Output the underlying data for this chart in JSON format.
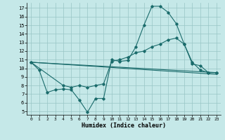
{
  "background_color": "#c5e8e8",
  "line_color": "#1a6b6b",
  "grid_color": "#98c5c5",
  "xlabel": "Humidex (Indice chaleur)",
  "ylim": [
    4.6,
    17.6
  ],
  "xlim": [
    -0.5,
    23.5
  ],
  "yticks": [
    5,
    6,
    7,
    8,
    9,
    10,
    11,
    12,
    13,
    14,
    15,
    16,
    17
  ],
  "xticks": [
    0,
    1,
    2,
    3,
    4,
    5,
    6,
    7,
    8,
    9,
    10,
    11,
    12,
    13,
    14,
    15,
    16,
    17,
    18,
    19,
    20,
    21,
    22,
    23
  ],
  "line1_x": [
    0,
    1,
    2,
    3,
    4,
    5,
    6,
    7,
    8,
    9,
    10,
    11,
    12,
    13,
    14,
    15,
    16,
    17,
    18,
    19,
    20,
    21,
    22,
    23
  ],
  "line1_y": [
    10.7,
    9.8,
    7.2,
    7.5,
    7.6,
    7.5,
    6.3,
    4.9,
    6.5,
    6.5,
    11.0,
    10.8,
    10.9,
    12.5,
    15.0,
    17.2,
    17.2,
    16.5,
    15.2,
    12.8,
    10.7,
    9.8,
    9.5,
    9.5
  ],
  "line2_x": [
    0,
    4,
    5,
    6,
    7,
    8,
    9,
    10,
    11,
    12,
    13,
    14,
    15,
    16,
    17,
    18,
    19,
    20,
    21,
    22,
    23
  ],
  "line2_y": [
    10.7,
    8.0,
    7.8,
    8.0,
    7.8,
    8.0,
    8.2,
    10.8,
    11.0,
    11.3,
    11.8,
    12.0,
    12.5,
    12.8,
    13.3,
    13.5,
    12.8,
    10.5,
    10.3,
    9.5,
    9.5
  ],
  "line3_x": [
    0,
    23
  ],
  "line3_y": [
    10.7,
    9.5
  ],
  "line4_x": [
    0,
    23
  ],
  "line4_y": [
    10.7,
    9.3
  ]
}
